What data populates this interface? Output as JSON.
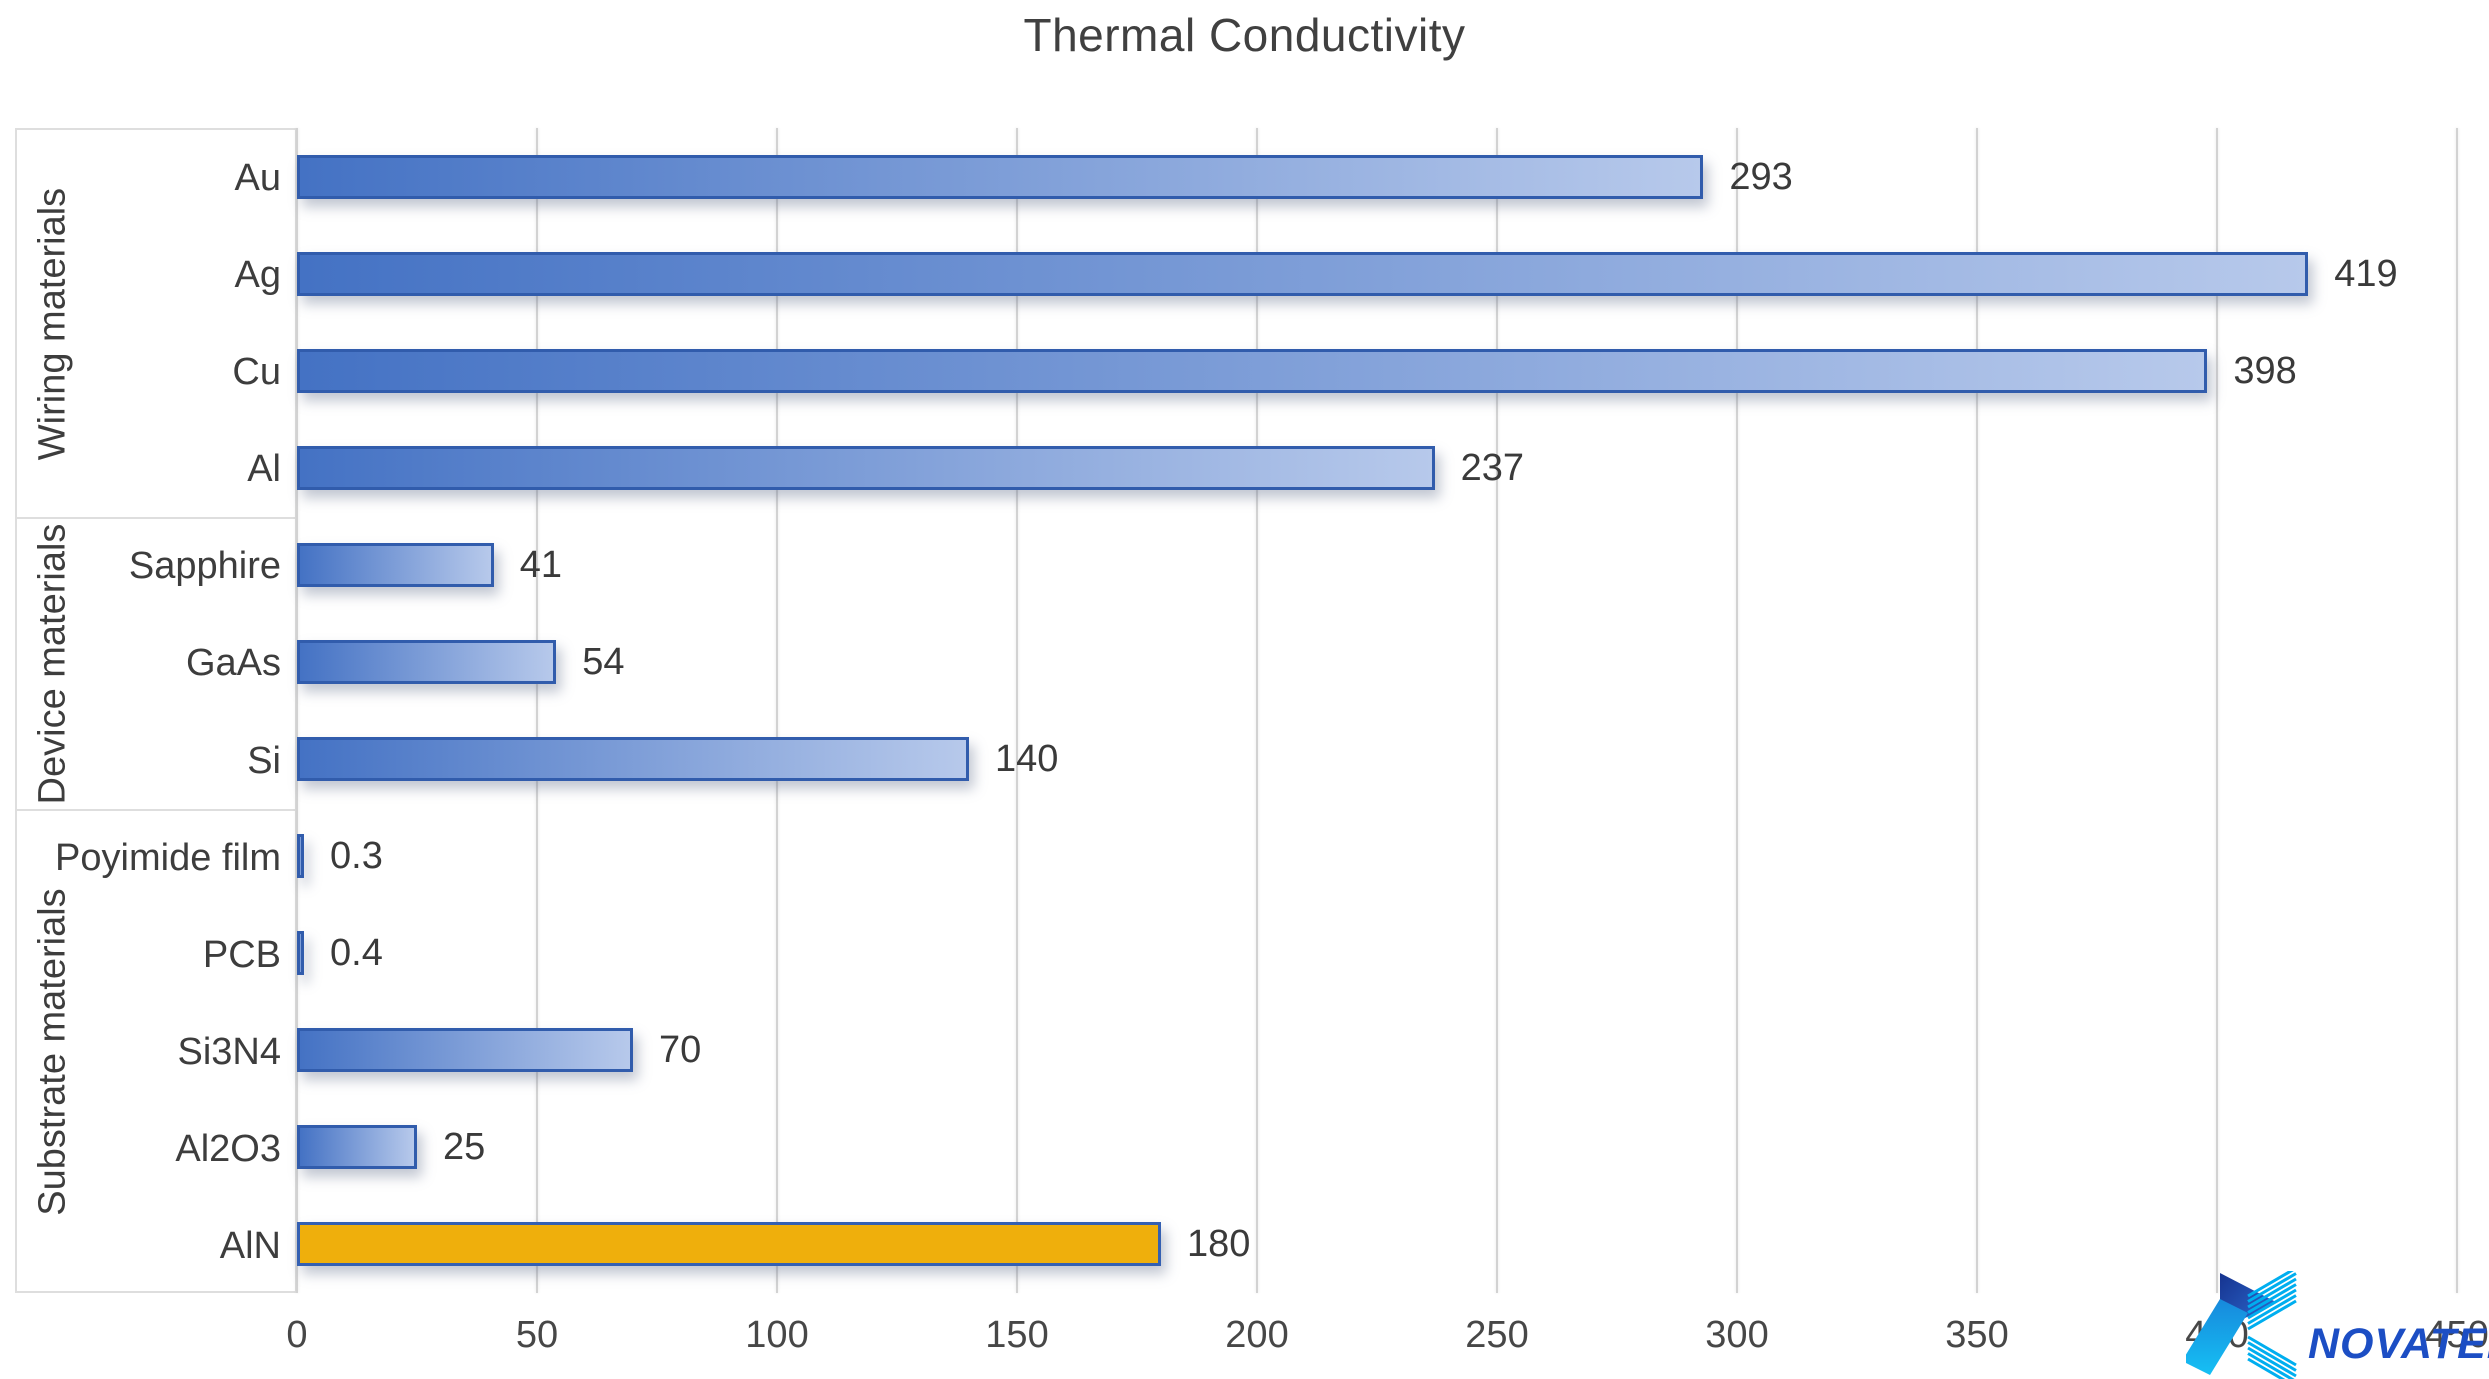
{
  "title": "Thermal Conductivity",
  "chart_data": {
    "type": "bar",
    "orientation": "horizontal",
    "title": "Thermal Conductivity",
    "xlabel": "",
    "ylabel": "",
    "xlim": [
      0,
      450
    ],
    "xticks": [
      0,
      50,
      100,
      150,
      200,
      250,
      300,
      350,
      400,
      450
    ],
    "grid": true,
    "groups": [
      {
        "label": "Wiring materials",
        "items": [
          {
            "label": "Au",
            "value": 293
          },
          {
            "label": "Ag",
            "value": 419
          },
          {
            "label": "Cu",
            "value": 398
          },
          {
            "label": "Al",
            "value": 237
          }
        ]
      },
      {
        "label": "Device materials",
        "items": [
          {
            "label": "Sapphire",
            "value": 41
          },
          {
            "label": "GaAs",
            "value": 54
          },
          {
            "label": "Si",
            "value": 140
          }
        ]
      },
      {
        "label": "Substrate materials",
        "items": [
          {
            "label": "Poyimide film",
            "value": 0.3
          },
          {
            "label": "PCB",
            "value": 0.4
          },
          {
            "label": "Si3N4",
            "value": 70
          },
          {
            "label": "Al2O3",
            "value": 25
          },
          {
            "label": "AlN",
            "value": 180,
            "highlight": true
          }
        ]
      }
    ],
    "colors": {
      "bar_gradient_start": "#4472C4",
      "bar_gradient_end": "#B7C9EB",
      "bar_border": "#315CAC",
      "highlight_fill": "#EFAF0C",
      "highlight_border": "#3460B2",
      "gridline": "#D2D2D2",
      "label_text": "#3d3d3d"
    }
  },
  "logo": {
    "text": "NOVATEK",
    "text_color": "#1C4EC4",
    "icon": "novatek-ribbon-chevron-icon",
    "icon_accent": "#00AEEF"
  }
}
